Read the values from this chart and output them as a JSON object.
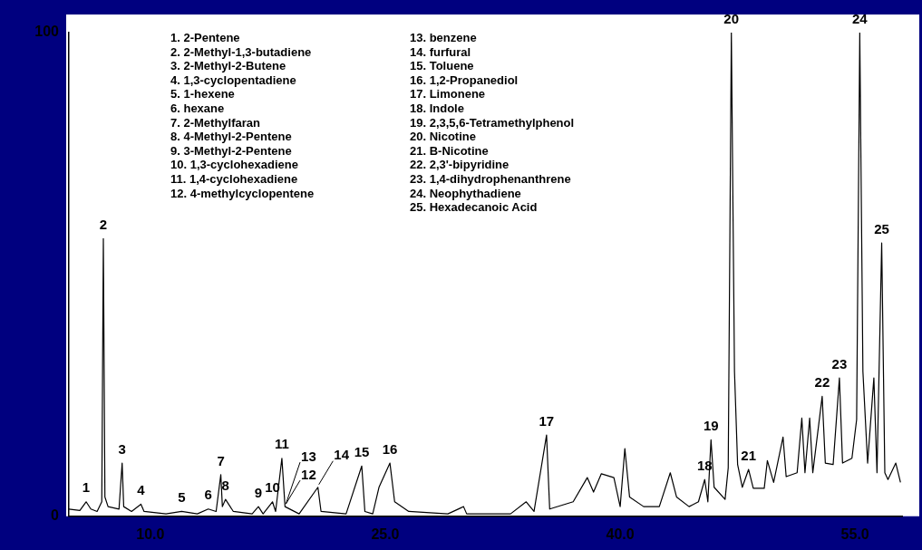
{
  "chart_data": {
    "type": "line",
    "color": "#000000",
    "grid": false,
    "legend": false,
    "marker": "none",
    "line_style": "solid",
    "xlim": [
      4.8,
      58
    ],
    "xticks": [
      {
        "value": 10,
        "label": "10.0"
      },
      {
        "value": 25,
        "label": "25.0"
      },
      {
        "value": 40,
        "label": "40.0"
      },
      {
        "value": 55,
        "label": "55.0"
      }
    ],
    "ylim": [
      0,
      100
    ],
    "yticks": [
      0,
      100
    ],
    "x": [
      4.8,
      5.5,
      5.9,
      6.2,
      6.6,
      6.9,
      7.0,
      7.1,
      7.3,
      8.0,
      8.2,
      8.3,
      8.8,
      9.4,
      9.6,
      11,
      12,
      13,
      13.7,
      14.2,
      14.5,
      14.6,
      14.8,
      15.3,
      16.5,
      16.9,
      17.2,
      17.8,
      18.0,
      18.4,
      18.6,
      19.5,
      20.7,
      20.9,
      22.5,
      23.5,
      23.7,
      24.2,
      24.6,
      25.3,
      25.6,
      26.5,
      29,
      30,
      30.2,
      33,
      34,
      34.5,
      35.3,
      35.5,
      37,
      37.9,
      38.3,
      38.8,
      39.6,
      40.0,
      40.3,
      40.6,
      41.5,
      42.5,
      43.2,
      43.6,
      44.4,
      45.0,
      45.4,
      45.6,
      45.8,
      46.0,
      46.7,
      46.9,
      47.1,
      47.3,
      47.5,
      47.8,
      48.2,
      48.5,
      49.2,
      49.4,
      49.8,
      50.4,
      50.6,
      51.3,
      51.6,
      51.8,
      52.1,
      52.3,
      52.9,
      53.1,
      53.6,
      54.0,
      54.2,
      54.8,
      55.1,
      55.3,
      55.5,
      55.8,
      56.2,
      56.4,
      56.7,
      56.9,
      57.1,
      57.6,
      57.9
    ],
    "values": [
      1.5,
      1.2,
      3,
      1.5,
      1,
      3,
      57.4,
      4,
      2,
      1.5,
      11,
      2,
      1,
      2.5,
      1,
      0.5,
      1,
      0.5,
      1.5,
      1,
      8.6,
      2,
      3.5,
      1,
      0.5,
      2,
      0.5,
      3,
      1,
      12,
      2,
      0.5,
      6,
      1,
      0.5,
      10.4,
      1,
      0.5,
      6,
      11,
      3,
      1,
      0.5,
      2,
      0.5,
      0.5,
      3,
      1,
      16.8,
      1.5,
      3,
      8,
      5,
      8.8,
      8,
      2,
      14,
      4,
      2,
      2,
      9,
      4,
      2,
      3,
      7.6,
      3,
      15.8,
      6,
      3.5,
      10,
      100,
      30,
      10.7,
      6,
      9.7,
      5.8,
      5.8,
      11.5,
      7,
      16.4,
      8.2,
      9,
      20.3,
      9,
      20.3,
      9,
      24.8,
      11,
      10.7,
      28.6,
      11,
      12,
      20,
      100,
      30,
      11,
      28.6,
      9,
      56.5,
      9,
      7.6,
      11,
      7
    ],
    "annotations": [
      {
        "text": "1",
        "x": 5.9,
        "y": 3
      },
      {
        "text": "2",
        "x": 7.0,
        "y": 57.4
      },
      {
        "text": "3",
        "x": 8.2,
        "y": 11
      },
      {
        "text": "4",
        "x": 9.4,
        "y": 2.5
      },
      {
        "text": "5",
        "x": 12,
        "y": 1
      },
      {
        "text": "6",
        "x": 13.7,
        "y": 1.5
      },
      {
        "text": "7",
        "x": 14.5,
        "y": 8.6
      },
      {
        "text": "8",
        "x": 14.8,
        "y": 3.5
      },
      {
        "text": "9",
        "x": 16.9,
        "y": 2
      },
      {
        "text": "10",
        "x": 17.8,
        "y": 3
      },
      {
        "text": "11",
        "x": 18.4,
        "y": 12
      },
      {
        "text": "12",
        "x": 18.6,
        "y": 2
      },
      {
        "text": "13",
        "x": 18.6,
        "y": 2
      },
      {
        "text": "14",
        "x": 20.7,
        "y": 6
      },
      {
        "text": "15",
        "x": 23.5,
        "y": 10.4
      },
      {
        "text": "16",
        "x": 25.3,
        "y": 11
      },
      {
        "text": "17",
        "x": 35.3,
        "y": 16.8
      },
      {
        "text": "18",
        "x": 45.4,
        "y": 7.6
      },
      {
        "text": "19",
        "x": 45.8,
        "y": 15.8
      },
      {
        "text": "20",
        "x": 47.1,
        "y": 100
      },
      {
        "text": "21",
        "x": 48.2,
        "y": 9.7
      },
      {
        "text": "22",
        "x": 52.9,
        "y": 24.8
      },
      {
        "text": "23",
        "x": 54.0,
        "y": 28.6
      },
      {
        "text": "24",
        "x": 55.3,
        "y": 100
      },
      {
        "text": "25",
        "x": 56.7,
        "y": 56.5
      },
      "1. 2-Pentene",
      "2. 2-Methyl-1,3-butadiene",
      "3. 2-Methyl-2-Butene",
      "4. 1,3-cyclopentadiene",
      "5. 1-hexene",
      "6. hexane",
      "7. 2-Methylfaran",
      "8. 4-Methyl-2-Pentene",
      "9. 3-Methyl-2-Pentene",
      "10. 1,3-cyclohexadiene",
      "11. 1,4-cyclohexadiene",
      "12. 4-methylcyclopentene",
      "13. benzene",
      "14. furfural",
      "15. Toluene",
      "16. 1,2-Propanediol",
      "17. Limonene",
      "18. Indole",
      "19. 2,3,5,6-Tetramethylphenol",
      "20. Nicotine",
      "21. B-Nicotine",
      "22. 2,3'-bipyridine",
      "23. 1,4-dihydrophenanthrene",
      "24. Neophythadiene",
      "25. Hexadecanoic Acid"
    ]
  }
}
